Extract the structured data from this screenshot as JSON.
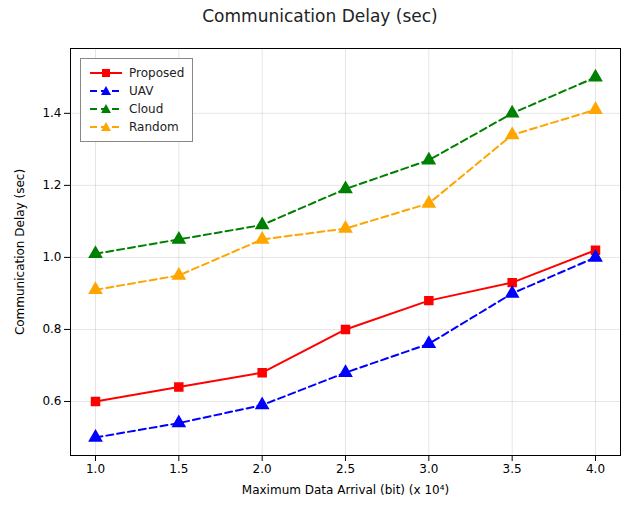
{
  "chart_data": {
    "type": "line",
    "title": "Communication Delay (sec)",
    "xlabel": "Maximum Data Arrival (bit) (x 10⁴)",
    "ylabel": "Communication Delay (sec)",
    "x": [
      1.0,
      1.5,
      2.0,
      2.5,
      3.0,
      3.5,
      4.0
    ],
    "series": [
      {
        "name": "Proposed",
        "color": "#FF0000",
        "marker": "square",
        "line_style": "solid",
        "values": [
          0.6,
          0.64,
          0.68,
          0.8,
          0.88,
          0.93,
          1.02
        ]
      },
      {
        "name": "UAV",
        "color": "#0000FF",
        "marker": "triangle",
        "line_style": "dashed",
        "values": [
          0.5,
          0.54,
          0.59,
          0.68,
          0.76,
          0.9,
          1.0
        ]
      },
      {
        "name": "Cloud",
        "color": "#008000",
        "marker": "triangle",
        "line_style": "dashed",
        "values": [
          1.01,
          1.05,
          1.09,
          1.19,
          1.27,
          1.4,
          1.5
        ]
      },
      {
        "name": "Random",
        "color": "#FFA500",
        "marker": "triangle",
        "line_style": "dashed",
        "values": [
          0.91,
          0.95,
          1.05,
          1.08,
          1.15,
          1.34,
          1.41
        ]
      }
    ],
    "xlim": [
      0.85,
      4.15
    ],
    "xticks": [
      {
        "value": 1.0,
        "label": "1.0"
      },
      1.5,
      {
        "value": 2.0,
        "label": "2.0"
      },
      2.5,
      {
        "value": 3.0,
        "label": "3.0"
      },
      3.5,
      {
        "value": 4.0,
        "label": "4.0"
      }
    ],
    "ylim": [
      0.45,
      1.58
    ],
    "yticks": [
      0.6,
      0.8,
      {
        "value": 1.0,
        "label": "1.0"
      },
      1.2,
      1.4
    ],
    "grid": true,
    "legend": "upper left"
  }
}
